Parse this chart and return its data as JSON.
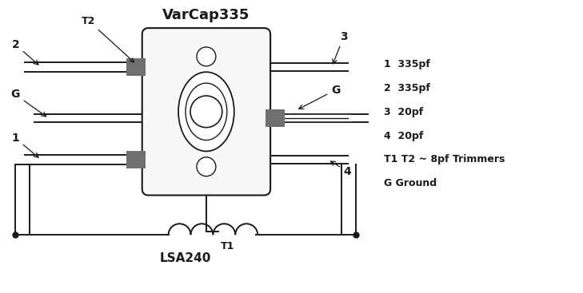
{
  "title": "VarCap335",
  "legend_lines": [
    "1  335pf",
    "2  335pf",
    "3  20pf",
    "4  20pf",
    "T1 T2 ~ 8pf Trimmers",
    "G Ground"
  ],
  "coil_label": "LSA240",
  "bg_color": "#ffffff",
  "line_color": "#1a1a1a",
  "gray_color": "#707070",
  "body_fill": "#f8f8f8"
}
